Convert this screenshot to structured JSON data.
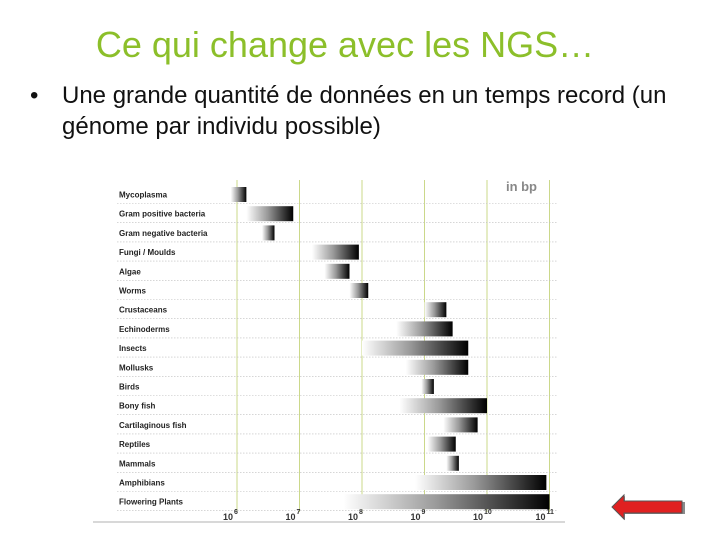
{
  "slide": {
    "title": "Ce qui change avec les NGS…",
    "bullets": [
      {
        "symbol": "•",
        "text": "Une grande quantité de données en un temps record (un génome par individu possible)"
      }
    ]
  },
  "chart_data": {
    "type": "bar",
    "unit_label": "in bp",
    "x_scale": "log10",
    "x_ticks": [
      {
        "base": "10",
        "exp": "6",
        "value": 1000000
      },
      {
        "base": "10",
        "exp": "7",
        "value": 10000000
      },
      {
        "base": "10",
        "exp": "8",
        "value": 100000000
      },
      {
        "base": "10",
        "exp": "9",
        "value": 1000000000
      },
      {
        "base": "10",
        "exp": "10",
        "value": 10000000000
      },
      {
        "base": "10",
        "exp": "11",
        "value": 100000000000
      }
    ],
    "categories": [
      "Mycoplasma",
      "Gram positive bacteria",
      "Gram negative bacteria",
      "Fungi / Moulds",
      "Algae",
      "Worms",
      "Crustaceans",
      "Echinoderms",
      "Insects",
      "Mollusks",
      "Birds",
      "Bony fish",
      "Cartilaginous fish",
      "Reptiles",
      "Mammals",
      "Amphibians",
      "Flowering Plants"
    ],
    "ranges_log10": [
      [
        5.9,
        6.15
      ],
      [
        6.15,
        6.9
      ],
      [
        6.4,
        6.6
      ],
      [
        7.2,
        7.95
      ],
      [
        7.4,
        7.8
      ],
      [
        7.8,
        8.1
      ],
      [
        9.0,
        9.35
      ],
      [
        8.55,
        9.45
      ],
      [
        8.0,
        9.7
      ],
      [
        8.7,
        9.7
      ],
      [
        8.95,
        9.15
      ],
      [
        8.6,
        10.0
      ],
      [
        9.3,
        9.85
      ],
      [
        9.05,
        9.5
      ],
      [
        9.35,
        9.55
      ],
      [
        8.85,
        10.95
      ],
      [
        7.7,
        11.0
      ]
    ]
  },
  "nav": {
    "icon": "left-arrow-icon",
    "color": "#e02020"
  }
}
